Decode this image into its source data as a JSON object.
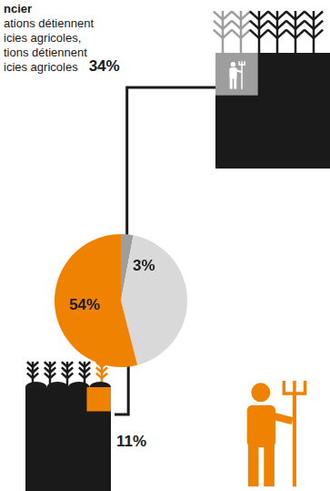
{
  "chart_data": {
    "type": "pie",
    "title": "ncier",
    "subtitle": [
      "ations détiennent",
      "icies agricoles,",
      "tions détiennent",
      "icies agricoles"
    ],
    "values": [
      3,
      43,
      54
    ],
    "value_labels": [
      "3%",
      null,
      "54%"
    ],
    "colors": [
      "#9e9e9e",
      "#d9d9d9",
      "#ef8200"
    ],
    "data_labels": true,
    "annotations": [
      {
        "label": "34%",
        "value": 34,
        "color": "#9e9e9e"
      },
      {
        "label": "11%",
        "value": 11,
        "color": "#ef8200"
      }
    ]
  }
}
